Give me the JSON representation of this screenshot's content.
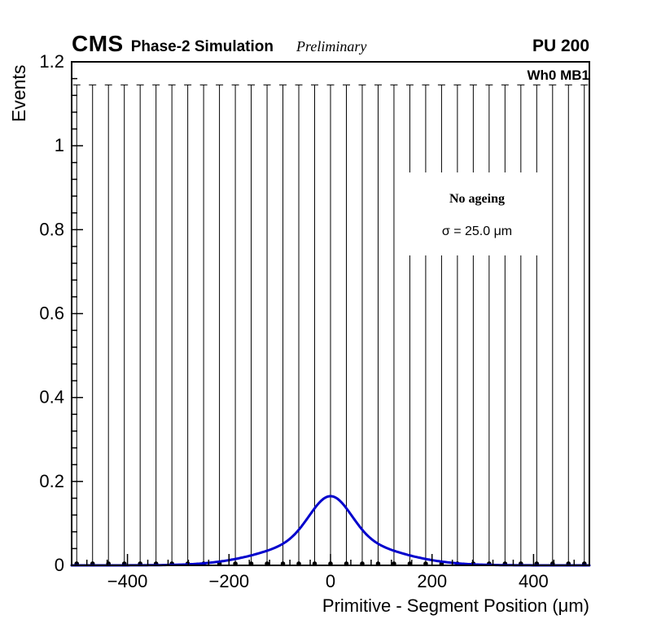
{
  "header": {
    "brand": "CMS",
    "subtitle": "Phase-2 Simulation",
    "preliminary": "Preliminary",
    "pileup": "PU 200"
  },
  "plot": {
    "label": "Wh0 MB1",
    "legend_line1": "No ageing",
    "legend_line2": "σ = 25.0 μm"
  },
  "chart_data": {
    "type": "scatter",
    "title": "",
    "xlabel": "Primitive - Segment Position (μm)",
    "ylabel": "Events",
    "xlim": [
      -510,
      510
    ],
    "ylim": [
      0,
      1.2
    ],
    "grid": false,
    "x_ticks": [
      -400,
      -200,
      0,
      200,
      400
    ],
    "x_tick_labels": [
      "−400",
      "−200",
      "0",
      "200",
      "400"
    ],
    "x_minor_step": 40,
    "y_ticks": [
      0,
      0.2,
      0.4,
      0.6,
      0.8,
      1,
      1.2
    ],
    "y_tick_labels": [
      "0",
      "0.2",
      "0.4",
      "0.6",
      "0.8",
      "1",
      "1.2"
    ],
    "y_minor_step": 0.04,
    "points": {
      "x": [
        -500,
        -468.75,
        -437.5,
        -406.25,
        -375,
        -343.75,
        -312.5,
        -281.25,
        -250,
        -218.75,
        -187.5,
        -156.25,
        -125,
        -93.75,
        -62.5,
        -31.25,
        0,
        31.25,
        62.5,
        93.75,
        125,
        156.25,
        187.5,
        218.75,
        250,
        281.25,
        312.5,
        343.75,
        375,
        406.25,
        437.5,
        468.75,
        500
      ],
      "y": 0.004,
      "y_err_top": 1.145,
      "marker_color": "#000000"
    },
    "fit_curve": {
      "color": "#0000cc",
      "model": "sum_of_gaussians",
      "center": 0,
      "components": [
        {
          "amp": 0.1,
          "sigma": 40
        },
        {
          "amp": 0.065,
          "sigma": 110
        }
      ],
      "peak_value": 0.165
    }
  }
}
